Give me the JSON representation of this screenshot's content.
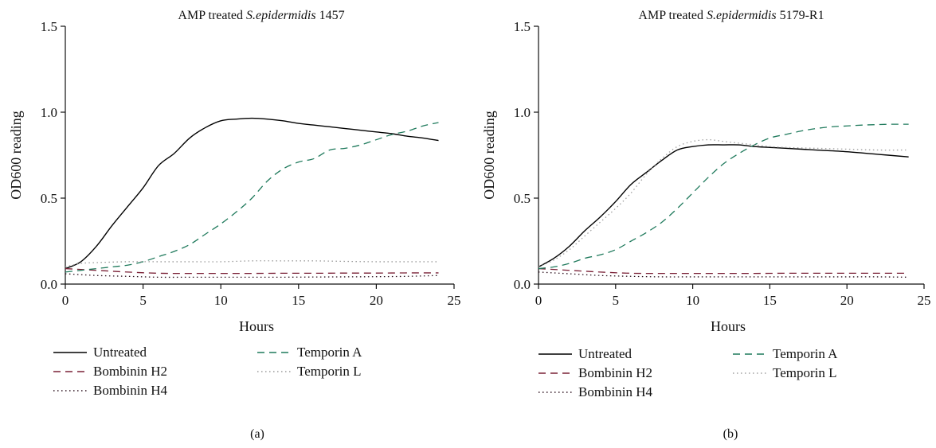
{
  "chart_data": [
    {
      "type": "line",
      "panel_label": "(a)",
      "title_parts": [
        "AMP treated ",
        "S.epidermidis",
        " 1457"
      ],
      "xlabel": "Hours",
      "ylabel": "OD600 reading",
      "xlim": [
        0,
        25
      ],
      "ylim": [
        0,
        1.5
      ],
      "xticks": [
        "0",
        "5",
        "10",
        "15",
        "20",
        "25"
      ],
      "yticks": [
        "0.0",
        "0.5",
        "1.0",
        "1.5"
      ],
      "grid": false,
      "legend_position": "bottom",
      "series": [
        {
          "name": "Untreated",
          "color": "#000000",
          "dash": "solid",
          "x": [
            0,
            1,
            2,
            3,
            4,
            5,
            6,
            7,
            8,
            9,
            10,
            11,
            12,
            13,
            14,
            15,
            16,
            17,
            18,
            19,
            20,
            21,
            22,
            23,
            24
          ],
          "y": [
            0.09,
            0.13,
            0.22,
            0.34,
            0.45,
            0.56,
            0.69,
            0.76,
            0.85,
            0.91,
            0.95,
            0.96,
            0.965,
            0.96,
            0.95,
            0.935,
            0.925,
            0.915,
            0.905,
            0.895,
            0.885,
            0.875,
            0.86,
            0.85,
            0.835
          ]
        },
        {
          "name": "Bombinin H2",
          "color": "#7a2036",
          "dash": "dashed",
          "x": [
            0,
            2,
            4,
            6,
            8,
            10,
            12,
            14,
            16,
            18,
            20,
            22,
            24
          ],
          "y": [
            0.09,
            0.08,
            0.07,
            0.063,
            0.062,
            0.062,
            0.062,
            0.063,
            0.063,
            0.064,
            0.064,
            0.065,
            0.065
          ]
        },
        {
          "name": "Bombinin H4",
          "color": "#2a0f1c",
          "dash": "dotted",
          "x": [
            0,
            2,
            4,
            6,
            8,
            10,
            12,
            14,
            16,
            18,
            20,
            22,
            24
          ],
          "y": [
            0.06,
            0.05,
            0.045,
            0.04,
            0.04,
            0.04,
            0.04,
            0.04,
            0.041,
            0.042,
            0.043,
            0.045,
            0.05
          ]
        },
        {
          "name": "Temporin A",
          "color": "#1f7a5c",
          "dash": "dashed",
          "x": [
            0,
            1,
            2,
            3,
            4,
            5,
            6,
            7,
            8,
            9,
            10,
            11,
            12,
            13,
            14,
            15,
            16,
            17,
            18,
            19,
            20,
            21,
            22,
            23,
            24
          ],
          "y": [
            0.07,
            0.08,
            0.09,
            0.1,
            0.11,
            0.13,
            0.16,
            0.19,
            0.23,
            0.29,
            0.35,
            0.42,
            0.5,
            0.6,
            0.67,
            0.71,
            0.73,
            0.78,
            0.79,
            0.81,
            0.84,
            0.87,
            0.89,
            0.92,
            0.94
          ]
        },
        {
          "name": "Temporin L",
          "color": "#9a9a9a",
          "dash": "dotted",
          "x": [
            0,
            1,
            2,
            4,
            6,
            8,
            10,
            12,
            14,
            16,
            18,
            20,
            22,
            24
          ],
          "y": [
            0.1,
            0.12,
            0.125,
            0.13,
            0.13,
            0.13,
            0.13,
            0.135,
            0.135,
            0.135,
            0.132,
            0.13,
            0.13,
            0.13
          ]
        }
      ]
    },
    {
      "type": "line",
      "panel_label": "(b)",
      "title_parts": [
        "AMP treated ",
        "S.epidermidis",
        " 5179-R1"
      ],
      "xlabel": "Hours",
      "ylabel": "OD600 reading",
      "xlim": [
        0,
        25
      ],
      "ylim": [
        0,
        1.5
      ],
      "xticks": [
        "0",
        "5",
        "10",
        "15",
        "20",
        "25"
      ],
      "yticks": [
        "0.0",
        "0.5",
        "1.0",
        "1.5"
      ],
      "grid": false,
      "legend_position": "bottom",
      "series": [
        {
          "name": "Untreated",
          "color": "#000000",
          "dash": "solid",
          "x": [
            0,
            1,
            2,
            3,
            4,
            5,
            6,
            7,
            8,
            9,
            10,
            11,
            12,
            13,
            14,
            15,
            16,
            18,
            20,
            22,
            24
          ],
          "y": [
            0.1,
            0.15,
            0.22,
            0.31,
            0.39,
            0.48,
            0.58,
            0.65,
            0.72,
            0.78,
            0.8,
            0.81,
            0.81,
            0.81,
            0.8,
            0.795,
            0.79,
            0.78,
            0.77,
            0.755,
            0.74
          ]
        },
        {
          "name": "Bombinin H2",
          "color": "#7a2036",
          "dash": "dashed",
          "x": [
            0,
            2,
            4,
            6,
            8,
            10,
            12,
            14,
            16,
            18,
            20,
            22,
            24
          ],
          "y": [
            0.09,
            0.08,
            0.07,
            0.063,
            0.062,
            0.062,
            0.062,
            0.062,
            0.063,
            0.063,
            0.063,
            0.063,
            0.063
          ]
        },
        {
          "name": "Bombinin H4",
          "color": "#2a0f1c",
          "dash": "dotted",
          "x": [
            0,
            2,
            4,
            6,
            8,
            10,
            12,
            14,
            16,
            18,
            20,
            22,
            24
          ],
          "y": [
            0.07,
            0.06,
            0.05,
            0.045,
            0.042,
            0.042,
            0.042,
            0.042,
            0.042,
            0.042,
            0.042,
            0.042,
            0.04
          ]
        },
        {
          "name": "Temporin A",
          "color": "#1f7a5c",
          "dash": "dashed",
          "x": [
            0,
            1,
            2,
            3,
            4,
            5,
            6,
            7,
            8,
            9,
            10,
            11,
            12,
            13,
            14,
            15,
            16,
            17,
            18,
            19,
            20,
            21,
            22,
            23,
            24
          ],
          "y": [
            0.09,
            0.1,
            0.12,
            0.15,
            0.17,
            0.2,
            0.25,
            0.3,
            0.36,
            0.44,
            0.53,
            0.62,
            0.7,
            0.76,
            0.81,
            0.85,
            0.87,
            0.89,
            0.905,
            0.915,
            0.92,
            0.925,
            0.928,
            0.93,
            0.93
          ]
        },
        {
          "name": "Temporin L",
          "color": "#a0a0a0",
          "dash": "dotted",
          "x": [
            0,
            1,
            2,
            3,
            4,
            5,
            6,
            7,
            8,
            9,
            10,
            11,
            12,
            13,
            14,
            15,
            16,
            18,
            20,
            22,
            24
          ],
          "y": [
            0.1,
            0.14,
            0.2,
            0.28,
            0.36,
            0.44,
            0.53,
            0.64,
            0.73,
            0.8,
            0.83,
            0.84,
            0.83,
            0.82,
            0.81,
            0.8,
            0.795,
            0.79,
            0.785,
            0.78,
            0.78
          ]
        }
      ]
    }
  ]
}
